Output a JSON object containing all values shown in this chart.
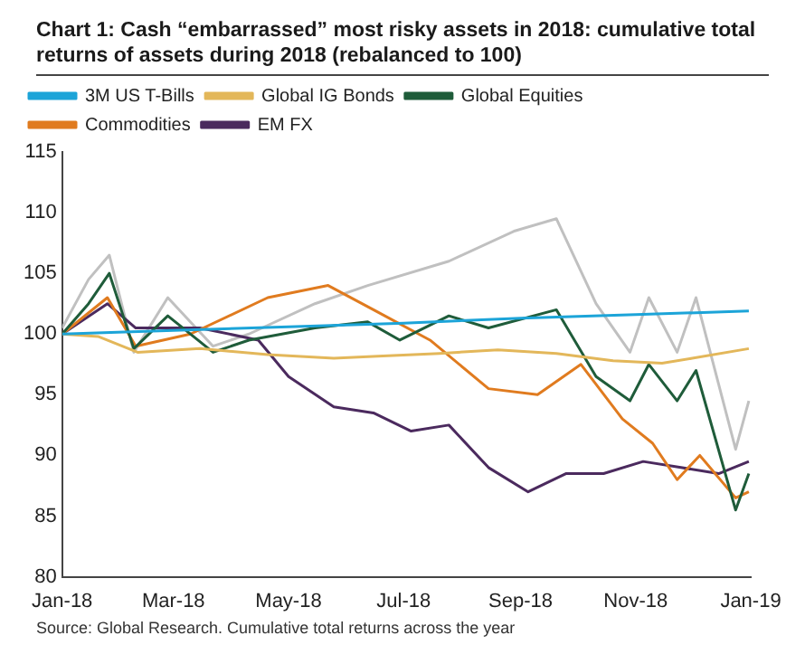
{
  "chart_data": {
    "type": "line",
    "title": "Chart 1: Cash “embarrassed” most risky assets in 2018: cumulative total returns of assets during 2018 (rebalanced to 100)",
    "annotations": [
      "Source: Global Research. Cumulative total returns across the year"
    ],
    "series": [
      {
        "name": "3M US T-Bills",
        "color": "#1ca4d8",
        "x": [
          "2018-01-01",
          "2018-03-01",
          "2018-05-01",
          "2018-07-01",
          "2018-09-01",
          "2018-11-01",
          "2018-12-31"
        ],
        "values": [
          100,
          100.3,
          100.6,
          100.9,
          101.3,
          101.6,
          101.9
        ]
      },
      {
        "name": "Global IG Bonds",
        "color": "#e3b75a",
        "x": [
          "2018-01-01",
          "2018-01-20",
          "2018-02-10",
          "2018-03-15",
          "2018-04-20",
          "2018-05-25",
          "2018-06-20",
          "2018-07-20",
          "2018-08-20",
          "2018-09-20",
          "2018-10-20",
          "2018-11-15",
          "2018-12-01",
          "2018-12-31"
        ],
        "values": [
          100,
          99.8,
          98.5,
          98.8,
          98.3,
          98,
          98.2,
          98.4,
          98.7,
          98.4,
          97.8,
          97.6,
          98,
          98.8
        ]
      },
      {
        "name": "Global Equities",
        "color": "#1f5c3a",
        "x": [
          "2018-01-01",
          "2018-01-15",
          "2018-01-26",
          "2018-02-08",
          "2018-02-26",
          "2018-03-22",
          "2018-04-10",
          "2018-05-15",
          "2018-06-12",
          "2018-06-29",
          "2018-07-25",
          "2018-08-15",
          "2018-09-20",
          "2018-10-11",
          "2018-10-29",
          "2018-11-08",
          "2018-11-23",
          "2018-12-03",
          "2018-12-24",
          "2018-12-31"
        ],
        "values": [
          100,
          102.5,
          105,
          98.8,
          101.5,
          98.5,
          99.5,
          100.5,
          101,
          99.5,
          101.5,
          100.5,
          102,
          96.5,
          94.5,
          97.5,
          94.5,
          97,
          85.5,
          88.5
        ]
      },
      {
        "name": "Commodities",
        "color": "#e07b1f",
        "x": [
          "2018-01-01",
          "2018-01-25",
          "2018-02-09",
          "2018-03-10",
          "2018-04-20",
          "2018-05-22",
          "2018-06-15",
          "2018-07-15",
          "2018-08-15",
          "2018-09-10",
          "2018-10-03",
          "2018-10-25",
          "2018-11-10",
          "2018-11-23",
          "2018-12-05",
          "2018-12-24",
          "2018-12-31"
        ],
        "values": [
          100,
          103,
          99,
          100,
          103,
          104,
          102,
          99.5,
          95.5,
          95,
          97.5,
          93,
          91,
          88,
          90,
          86.5,
          87
        ]
      },
      {
        "name": "EM FX",
        "color": "#4b2a5e",
        "x": [
          "2018-01-01",
          "2018-01-25",
          "2018-02-09",
          "2018-03-15",
          "2018-04-15",
          "2018-05-01",
          "2018-05-25",
          "2018-06-15",
          "2018-07-05",
          "2018-07-25",
          "2018-08-15",
          "2018-09-05",
          "2018-09-25",
          "2018-10-15",
          "2018-11-05",
          "2018-11-25",
          "2018-12-15",
          "2018-12-31"
        ],
        "values": [
          100,
          102.5,
          100.5,
          100.5,
          99.5,
          96.5,
          94,
          93.5,
          92,
          92.5,
          89,
          87,
          88.5,
          88.5,
          89.5,
          89,
          88.5,
          89.5
        ]
      },
      {
        "color": "#c0c0c0",
        "x": [
          "2018-01-01",
          "2018-01-15",
          "2018-01-26",
          "2018-02-08",
          "2018-02-26",
          "2018-03-22",
          "2018-04-10",
          "2018-05-15",
          "2018-06-12",
          "2018-07-25",
          "2018-08-29",
          "2018-09-20",
          "2018-10-11",
          "2018-10-29",
          "2018-11-08",
          "2018-11-23",
          "2018-12-03",
          "2018-12-24",
          "2018-12-31"
        ],
        "values": [
          100.5,
          104.5,
          106.5,
          98.5,
          103,
          99,
          100,
          102.5,
          104,
          106,
          108.5,
          109.5,
          102.5,
          98.5,
          103,
          98.5,
          103,
          90.5,
          94.5
        ]
      }
    ],
    "xlim": [
      "2018-01-01",
      "2019-01-01"
    ],
    "xticks": [
      {
        "value": "2018-01-01",
        "label": "Jan-18"
      },
      {
        "value": "2018-03-01",
        "label": "Mar-18"
      },
      {
        "value": "2018-05-01",
        "label": "May-18"
      },
      {
        "value": "2018-07-01",
        "label": "Jul-18"
      },
      {
        "value": "2018-09-01",
        "label": "Sep-18"
      },
      {
        "value": "2018-11-01",
        "label": "Nov-18"
      },
      {
        "value": "2019-01-01",
        "label": "Jan-19"
      }
    ],
    "ylim": [
      80,
      115
    ],
    "yticks": [
      80,
      85,
      90,
      95,
      100,
      105,
      110,
      115
    ],
    "grid": false,
    "legend": "top left",
    "marker": "none",
    "line_style": "solid"
  }
}
